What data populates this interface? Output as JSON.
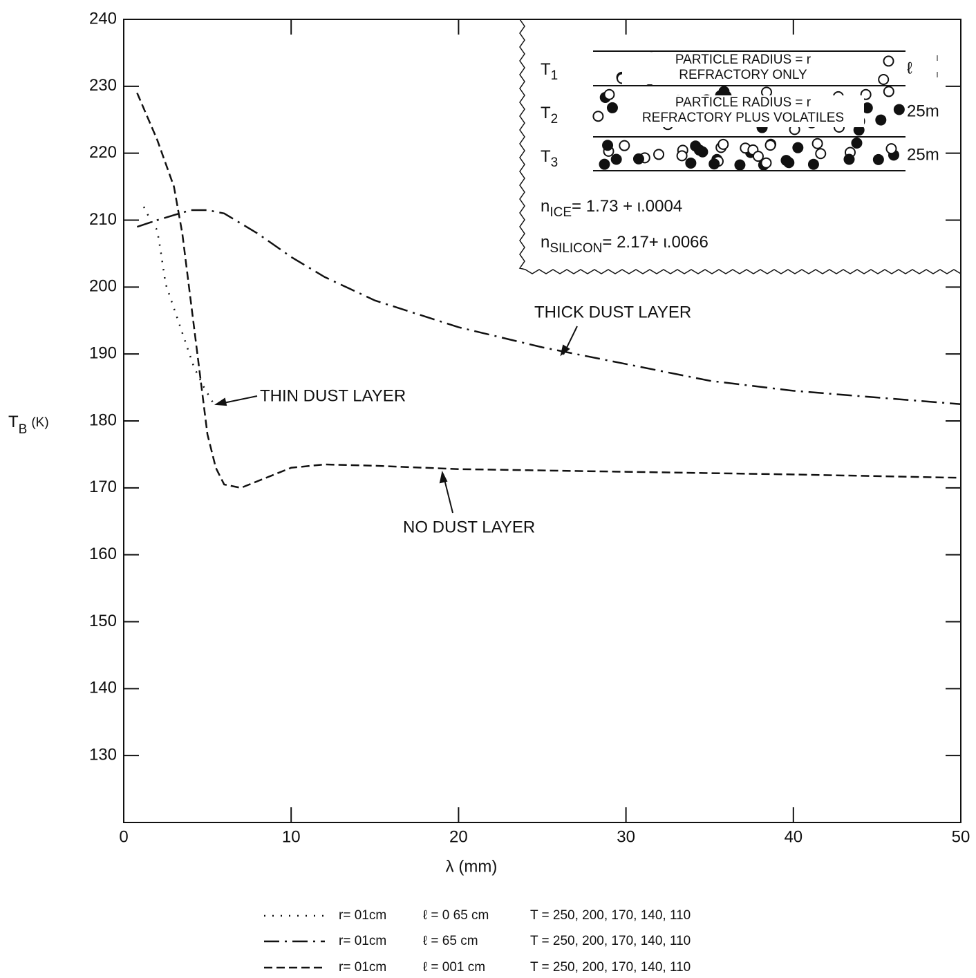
{
  "chart_data": {
    "type": "line",
    "x_label": "λ (mm)",
    "y_label": {
      "main": "T",
      "sub": "B",
      "unit": "(K)"
    },
    "xlim": [
      0,
      50
    ],
    "xticks": [
      0,
      10,
      20,
      30,
      40,
      50
    ],
    "ylim": [
      120,
      240
    ],
    "yticks": [
      130,
      140,
      150,
      160,
      170,
      180,
      190,
      200,
      210,
      220,
      230,
      240
    ],
    "series": [
      {
        "name": "THIN DUST LAYER",
        "color": "#111",
        "style": "dotted",
        "x": [
          1.2,
          1.6,
          2,
          2.2,
          2.5,
          4.2,
          4.8,
          5.5
        ],
        "values": [
          212,
          210,
          208.5,
          205.5,
          200.5,
          188,
          185,
          182
        ]
      },
      {
        "name": "THICK DUST LAYER",
        "color": "#111",
        "style": "dashdot",
        "x": [
          0.8,
          2,
          4,
          5,
          6,
          8,
          10,
          12,
          15,
          20,
          25,
          30,
          35,
          40,
          45,
          50
        ],
        "values": [
          209,
          210,
          211.5,
          211.5,
          211,
          208,
          204.5,
          201.5,
          198,
          194,
          191,
          188.5,
          186,
          184.5,
          183.5,
          182.5
        ]
      },
      {
        "name": "NO DUST LAYER",
        "color": "#111",
        "style": "dashed",
        "x": [
          0.8,
          2,
          3,
          3.5,
          4,
          4.5,
          5,
          5.5,
          6,
          7,
          8,
          10,
          12,
          15,
          20,
          30,
          40,
          50
        ],
        "values": [
          229,
          222,
          215,
          208,
          198,
          188,
          178,
          173,
          170.5,
          170,
          171,
          173,
          173.5,
          173.3,
          172.8,
          172.4,
          172,
          171.5
        ]
      }
    ],
    "legend_rows": [
      {
        "r": "r= 01cm",
        "l": "ℓ = 0 65 cm",
        "T": "T = 250, 200, 170, 140, 110"
      },
      {
        "r": "r= 01cm",
        "l": "ℓ = 65 cm",
        "T": "T = 250, 200, 170, 140, 110"
      },
      {
        "r": "r= 01cm",
        "l": "ℓ = 001 cm",
        "T": "T = 250, 200, 170, 140, 110"
      }
    ],
    "inset": {
      "layers": [
        {
          "label": "T",
          "sub": "1",
          "text1": "PARTICLE RADIUS = r",
          "text2": "REFRACTORY ONLY",
          "side": "ℓ"
        },
        {
          "label": "T",
          "sub": "2",
          "text1": "PARTICLE RADIUS = r",
          "text2": "REFRACTORY PLUS VOLATILES",
          "side": "25m"
        },
        {
          "label": "T",
          "sub": "3",
          "side": "25m"
        }
      ],
      "indices": [
        {
          "n": "n",
          "sub": "ICE",
          "value": "= 1.73 + ι.0004"
        },
        {
          "n": "n",
          "sub": "SILICON",
          "value": "= 2.17+ ι.0066"
        }
      ]
    }
  }
}
